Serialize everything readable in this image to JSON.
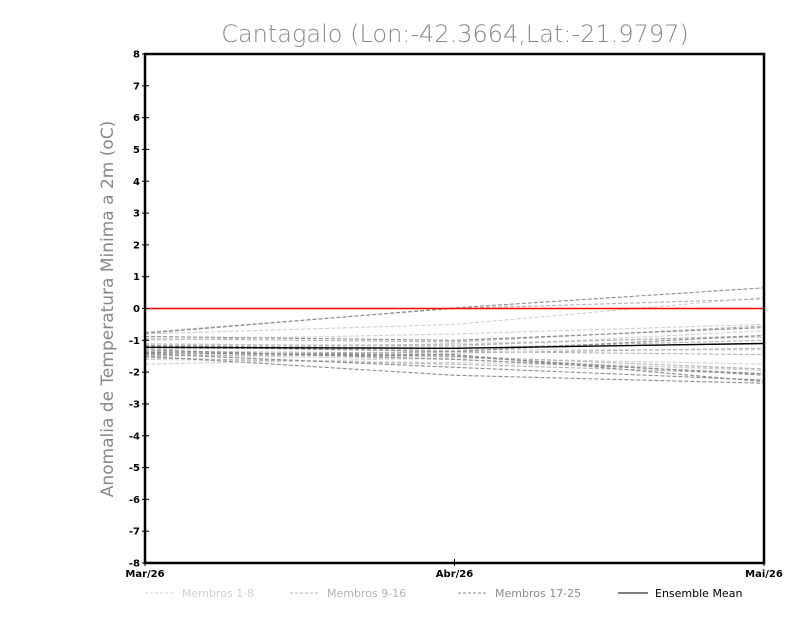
{
  "chart_data": {
    "type": "line",
    "title": "Cantagalo (Lon:-42.3664,Lat:-21.9797)",
    "xlabel": "",
    "ylabel": "Anomalia de Temperatura Minima a 2m (oC)",
    "categories": [
      "Mar/26",
      "Abr/26",
      "Mai/26"
    ],
    "ylim": [
      -8,
      8
    ],
    "yticks": [
      "8",
      "7",
      "6",
      "5",
      "4",
      "3",
      "2",
      "1",
      "0",
      "-1",
      "-2",
      "-3",
      "-4",
      "-5",
      "-6",
      "-7",
      "-8"
    ],
    "ytick_values": [
      8,
      7,
      6,
      5,
      4,
      3,
      2,
      1,
      0,
      -1,
      -2,
      -3,
      -4,
      -5,
      -6,
      -7,
      -8
    ],
    "reference_line": {
      "value": 0,
      "color": "#ff0000"
    },
    "groups": [
      {
        "name": "Membros 1-8",
        "color": "#d0d0d0",
        "series": [
          [
            -0.8,
            -0.5,
            0.35
          ],
          [
            -1.0,
            -0.8,
            -0.5
          ],
          [
            -1.3,
            -1.1,
            -0.9
          ],
          [
            -1.75,
            -1.55,
            -1.75
          ],
          [
            -1.2,
            -1.3,
            -1.3
          ],
          [
            -1.45,
            -1.6,
            -1.95
          ],
          [
            -1.1,
            -1.2,
            -0.7
          ],
          [
            -1.6,
            -1.7,
            -1.9
          ]
        ]
      },
      {
        "name": "Membros 9-16",
        "color": "#b2b2b2",
        "series": [
          [
            -0.75,
            0.0,
            0.3
          ],
          [
            -0.95,
            -1.05,
            -0.55
          ],
          [
            -1.25,
            -1.25,
            -1.0
          ],
          [
            -1.45,
            -1.5,
            -1.9
          ],
          [
            -1.35,
            -1.4,
            -1.25
          ],
          [
            -1.55,
            -1.75,
            -2.05
          ],
          [
            -1.15,
            -1.15,
            -0.85
          ],
          [
            -1.5,
            -1.35,
            -1.45
          ]
        ]
      },
      {
        "name": "Membros 17-25",
        "color": "#8c8c8c",
        "series": [
          [
            -0.78,
            0.02,
            0.65
          ],
          [
            -0.88,
            -1.0,
            -0.6
          ],
          [
            -1.2,
            -1.35,
            -0.85
          ],
          [
            -1.38,
            -1.5,
            -2.1
          ],
          [
            -1.5,
            -2.1,
            -2.35
          ],
          [
            -1.42,
            -1.85,
            -2.25
          ],
          [
            -1.3,
            -1.6,
            -2.05
          ],
          [
            -1.18,
            -1.25,
            -1.1
          ],
          [
            -1.4,
            -1.45,
            -2.3
          ]
        ]
      },
      {
        "name": "Ensemble Mean",
        "color": "#000000",
        "series": [
          [
            -1.22,
            -1.25,
            -1.1
          ]
        ]
      }
    ],
    "legend": [
      {
        "label": "Membros 1-8",
        "color": "#d0d0d0",
        "dashed": true
      },
      {
        "label": "Membros 9-16",
        "color": "#b2b2b2",
        "dashed": true
      },
      {
        "label": "Membros 17-25",
        "color": "#8c8c8c",
        "dashed": true
      },
      {
        "label": "Ensemble Mean",
        "color": "#000000",
        "dashed": false
      }
    ],
    "legend_position": "bottom"
  }
}
